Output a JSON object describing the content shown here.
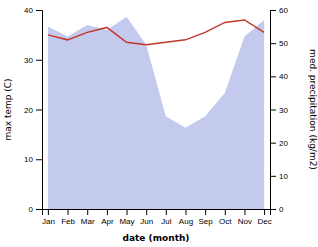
{
  "chart_data": {
    "type": "line",
    "categories": [
      "Jan",
      "Feb",
      "Mar",
      "Apr",
      "May",
      "Jun",
      "Jul",
      "Aug",
      "Sep",
      "Oct",
      "Nov",
      "Dec"
    ],
    "xlabel": "date (month)",
    "ylabel": "max temp (C)",
    "y2label": "med. precipitation (kg/m2)",
    "ylim": [
      0,
      40
    ],
    "yticks": [
      0,
      10,
      20,
      30,
      40
    ],
    "y2lim": [
      0,
      60
    ],
    "y2ticks": [
      0,
      10,
      20,
      30,
      40,
      50,
      60
    ],
    "series": [
      {
        "type": "area",
        "axis": "y2",
        "color": "#b0b8e8",
        "values": [
          55.0,
          52.0,
          55.5,
          54.0,
          58.0,
          49.5,
          28.0,
          24.5,
          28.0,
          35.0,
          52.0,
          57.0
        ]
      },
      {
        "type": "line",
        "color": "#c0392b",
        "values": [
          35.0,
          34.0,
          35.5,
          36.5,
          33.5,
          33.0,
          33.5,
          34.0,
          35.5,
          37.5,
          38.0,
          35.5
        ]
      }
    ]
  }
}
